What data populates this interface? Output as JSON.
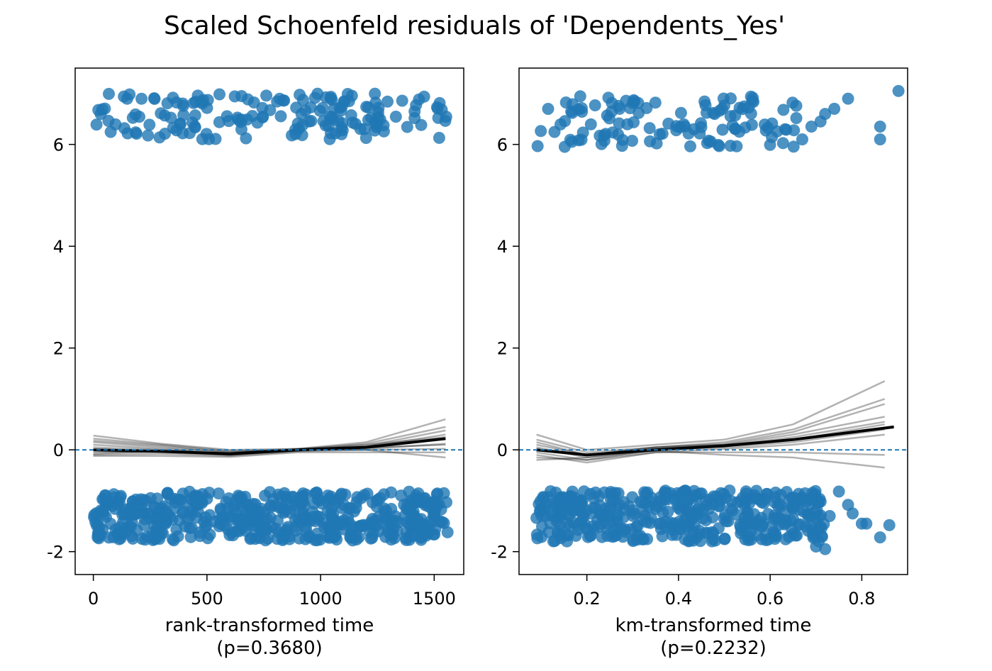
{
  "figure": {
    "title": "Scaled Schoenfeld residuals of 'Dependents_Yes'"
  },
  "colors": {
    "points": "#1f77b4",
    "smooth_main": "#000000",
    "smooth_bootstrap": "#000000",
    "reference_line": "#1f77b4"
  },
  "chart_data": [
    {
      "type": "scatter",
      "xlabel": "rank-transformed time",
      "xlabel_sub": "(p=0.3680)",
      "ylabel": "",
      "xlim": [
        -80,
        1630
      ],
      "ylim": [
        -2.45,
        7.5
      ],
      "xticks": [
        0,
        500,
        1000,
        1500
      ],
      "xtick_labels": [
        "0",
        "500",
        "1000",
        "1500"
      ],
      "yticks": [
        -2,
        0,
        2,
        4,
        6
      ],
      "ytick_labels": [
        "-2",
        "0",
        "2",
        "4",
        "6"
      ],
      "grid": false,
      "series": [
        {
          "kind": "points",
          "clusters": [
            {
              "x_range": [
                0,
                1560
              ],
              "y_center": 6.55,
              "y_spread": 0.45,
              "count": 170
            },
            {
              "x_range": [
                0,
                1560
              ],
              "y_center": -1.3,
              "y_spread": 0.48,
              "count": 520
            }
          ]
        },
        {
          "kind": "smooth",
          "x": [
            0,
            300,
            600,
            900,
            1200,
            1550
          ],
          "y": [
            0.0,
            -0.03,
            -0.08,
            0.0,
            0.05,
            0.22
          ]
        },
        {
          "kind": "bootstrap_smooths",
          "x": [
            0,
            300,
            600,
            900,
            1200,
            1550
          ],
          "curves": [
            [
              0.28,
              0.12,
              0.0,
              0.02,
              0.15,
              0.6
            ],
            [
              0.22,
              0.1,
              -0.02,
              0.0,
              0.12,
              0.45
            ],
            [
              0.15,
              0.05,
              -0.05,
              0.0,
              0.08,
              0.38
            ],
            [
              0.1,
              0.02,
              -0.06,
              0.0,
              0.06,
              0.3
            ],
            [
              -0.05,
              -0.05,
              -0.1,
              -0.02,
              0.02,
              0.12
            ],
            [
              -0.1,
              -0.08,
              -0.12,
              -0.03,
              0.0,
              0.02
            ],
            [
              -0.12,
              -0.12,
              -0.14,
              -0.05,
              -0.05,
              -0.05
            ],
            [
              0.05,
              0.0,
              -0.08,
              0.0,
              0.0,
              -0.15
            ],
            [
              0.18,
              0.08,
              -0.04,
              0.02,
              0.1,
              0.25
            ],
            [
              -0.08,
              -0.02,
              -0.1,
              0.0,
              0.04,
              0.1
            ]
          ]
        },
        {
          "kind": "hline",
          "y": 0
        }
      ]
    },
    {
      "type": "scatter",
      "xlabel": "km-transformed time",
      "xlabel_sub": "(p=0.2232)",
      "ylabel": "",
      "xlim": [
        0.052,
        0.9
      ],
      "ylim": [
        -2.45,
        7.5
      ],
      "xticks": [
        0.2,
        0.4,
        0.6,
        0.8
      ],
      "xtick_labels": [
        "0.2",
        "0.4",
        "0.6",
        "0.8"
      ],
      "yticks": [
        -2,
        0,
        2,
        4,
        6
      ],
      "ytick_labels": [
        "-2",
        "0",
        "2",
        "4",
        "6"
      ],
      "grid": false,
      "series": [
        {
          "kind": "points",
          "clusters": [
            {
              "x_range": [
                0.09,
                0.66
              ],
              "y_center": 6.45,
              "y_spread": 0.5,
              "count": 120
            },
            {
              "x_range": [
                0.09,
                0.72
              ],
              "y_center": -1.3,
              "y_spread": 0.5,
              "count": 420
            }
          ],
          "extra_points": [
            [
              0.67,
              6.1
            ],
            [
              0.69,
              6.35
            ],
            [
              0.71,
              6.45
            ],
            [
              0.72,
              6.6
            ],
            [
              0.74,
              6.7
            ],
            [
              0.77,
              6.9
            ],
            [
              0.84,
              6.35
            ],
            [
              0.84,
              6.1
            ],
            [
              0.88,
              7.05
            ],
            [
              0.75,
              -0.82
            ],
            [
              0.77,
              -1.08
            ],
            [
              0.73,
              -1.3
            ],
            [
              0.78,
              -1.25
            ],
            [
              0.8,
              -1.45
            ],
            [
              0.81,
              -1.45
            ],
            [
              0.86,
              -1.48
            ],
            [
              0.84,
              -1.72
            ],
            [
              0.72,
              -1.95
            ],
            [
              0.7,
              -1.9
            ]
          ]
        },
        {
          "kind": "smooth",
          "x": [
            0.09,
            0.2,
            0.35,
            0.5,
            0.65,
            0.87
          ],
          "y": [
            0.0,
            -0.1,
            0.0,
            0.08,
            0.2,
            0.45
          ]
        },
        {
          "kind": "bootstrap_smooths",
          "x": [
            0.09,
            0.2,
            0.35,
            0.5,
            0.65,
            0.85
          ],
          "curves": [
            [
              0.3,
              0.0,
              0.1,
              0.2,
              0.5,
              1.35
            ],
            [
              0.2,
              -0.05,
              0.05,
              0.15,
              0.4,
              1.0
            ],
            [
              0.15,
              -0.1,
              0.05,
              0.12,
              0.35,
              0.9
            ],
            [
              0.1,
              -0.1,
              0.02,
              0.1,
              0.3,
              0.65
            ],
            [
              0.05,
              -0.15,
              0.0,
              0.08,
              0.25,
              0.55
            ],
            [
              -0.05,
              -0.2,
              0.0,
              0.05,
              0.15,
              0.4
            ],
            [
              -0.1,
              -0.25,
              -0.05,
              0.02,
              0.1,
              0.3
            ],
            [
              -0.15,
              -0.2,
              -0.05,
              -0.05,
              -0.05,
              -0.1
            ],
            [
              -0.2,
              -0.15,
              -0.02,
              -0.1,
              -0.15,
              -0.35
            ],
            [
              0.0,
              -0.1,
              0.05,
              0.1,
              0.2,
              0.5
            ]
          ]
        },
        {
          "kind": "hline",
          "y": 0
        }
      ]
    }
  ]
}
